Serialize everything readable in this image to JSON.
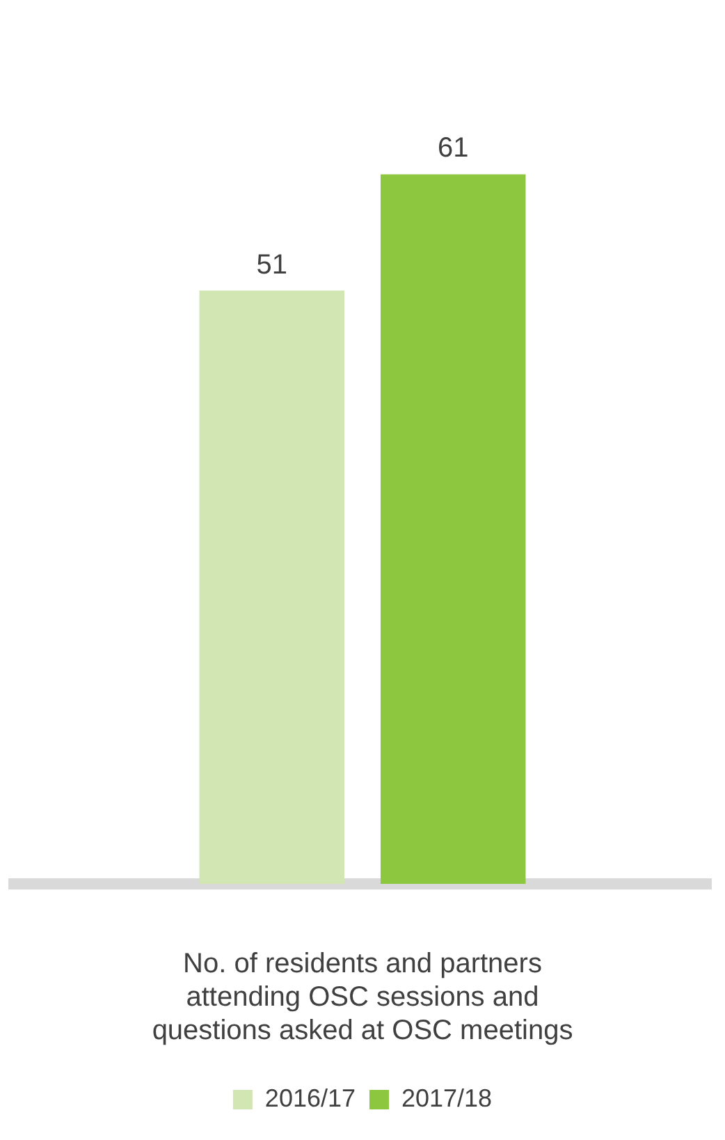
{
  "chart_data": {
    "type": "bar",
    "categories": [
      null
    ],
    "xlabel": "No. of residents and partners attending OSC sessions and questions asked at OSC meetings",
    "series": [
      {
        "name": "2016/17",
        "color": "#d1e6b3",
        "values": [
          51
        ]
      },
      {
        "name": "2017/18",
        "color": "#8dc63f",
        "values": [
          61
        ]
      }
    ],
    "data_labels": true,
    "legend": "bottom"
  }
}
